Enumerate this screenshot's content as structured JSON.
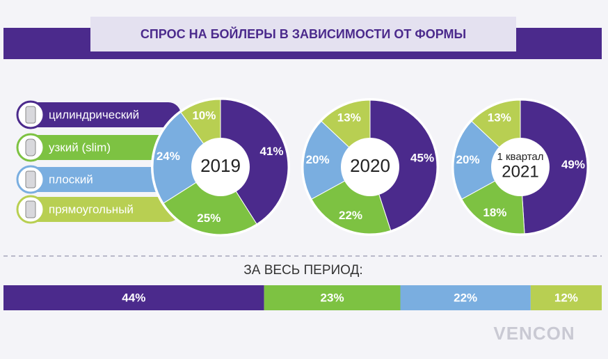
{
  "title": "СПРОС НА БОЙЛЕРЫ В ЗАВИСИМОСТИ ОТ ФОРМЫ",
  "legend": [
    "цилиндрический",
    "узкий (slim)",
    "плоский",
    "прямоугольный"
  ],
  "colors": [
    "#4b2a8c",
    "#7dc242",
    "#7aaee0",
    "#b8cf52"
  ],
  "chart_data": [
    {
      "type": "pie",
      "title": "2019",
      "values": [
        41,
        25,
        24,
        10
      ],
      "value_labels": [
        "41%",
        "25%",
        "24%",
        "10%"
      ]
    },
    {
      "type": "pie",
      "title": "2020",
      "values": [
        45,
        22,
        20,
        13
      ],
      "value_labels": [
        "45%",
        "22%",
        "20%",
        "13%"
      ]
    },
    {
      "type": "pie",
      "subtitle": "1 квартал",
      "title": "2021",
      "values": [
        49,
        18,
        20,
        13
      ],
      "value_labels": [
        "49%",
        "18%",
        "20%",
        "13%"
      ]
    },
    {
      "type": "bar",
      "title": "ЗА ВЕСЬ ПЕРИОД:",
      "values": [
        44,
        23,
        22,
        12
      ],
      "value_labels": [
        "44%",
        "23%",
        "22%",
        "12%"
      ]
    }
  ],
  "logo": "VENCON"
}
